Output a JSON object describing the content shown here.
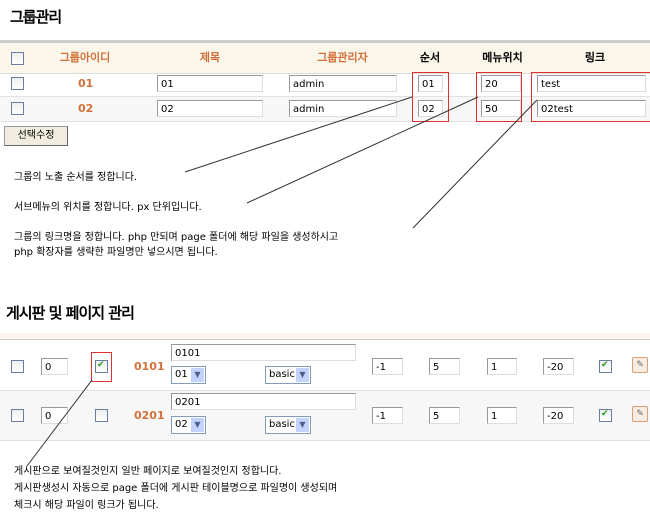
{
  "group": {
    "title": "그룹관리",
    "headers": [
      "그룹아이디",
      "제목",
      "그룹관리자",
      "순서",
      "메뉴위치",
      "링크"
    ],
    "rows": [
      {
        "id": "01",
        "title": "01",
        "admin": "admin",
        "order": "01",
        "menu_pos": "20",
        "link": "test"
      },
      {
        "id": "02",
        "title": "02",
        "admin": "admin",
        "order": "02",
        "menu_pos": "50",
        "link": "02test"
      }
    ],
    "button": "선택수정",
    "notes": [
      "그룹의 노출 순서를 정합니다.",
      "서브메뉴의 위치를 정합니다. px 단위입니다.",
      "그룹의 링크명을 정합니다. php 만되며 page 폴더에 해당 파일을 생성하시고",
      "php 확장자를 생략한 파일명만 넣으시면 됩니다."
    ]
  },
  "board": {
    "title": "게시판 및 페이지 관리",
    "rows": [
      {
        "order": "0",
        "is_board": true,
        "id": "0101",
        "title": "0101",
        "group": "01",
        "skin": "basic",
        "v1": "-1",
        "v2": "5",
        "v3": "1",
        "v4": "-20",
        "use": true
      },
      {
        "order": "0",
        "is_board": false,
        "id": "0201",
        "title": "0201",
        "group": "02",
        "skin": "basic",
        "v1": "-1",
        "v2": "5",
        "v3": "1",
        "v4": "-20",
        "use": true
      }
    ],
    "notes": [
      "게시판으로 보여질것인지 일반 페이지로 보여질것인지 정합니다.",
      "게시판생성시 자동으로 page 폴더에 게시판 테이블명으로 파일명이 생성되며",
      "체크시 해당 파일이 링크가 됩니다."
    ]
  },
  "colors": {
    "accent": "#d2703a",
    "highlight": "#e03030"
  }
}
